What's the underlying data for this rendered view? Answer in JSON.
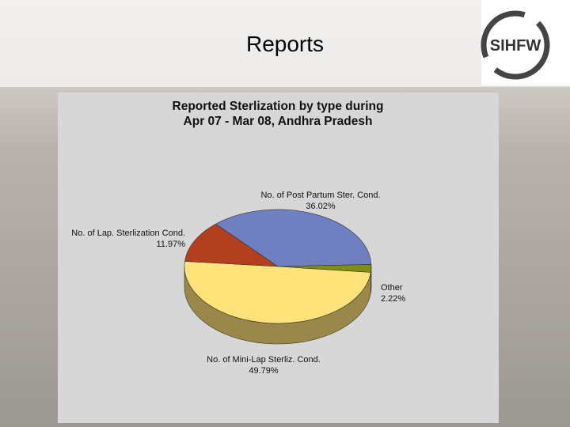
{
  "slide_title": "Reports",
  "logo_text": "SIHFW",
  "chart_data": {
    "type": "pie3d",
    "title_lines": [
      "Reported Sterlization by type during",
      "Apr 07 - Mar 08, Andhra Pradesh"
    ],
    "categories": [
      "No. of Post Partum Ster. Cond.",
      "Other",
      "No. of Mini-Lap Sterliz. Cond.",
      "No. of Lap. Sterlization Cond."
    ],
    "values": [
      36.02,
      2.22,
      49.79,
      11.97
    ],
    "value_labels": [
      "36.02%",
      "2.22%",
      "49.79%",
      "11.97%"
    ],
    "colors": [
      "#6f80c2",
      "#7f8f14",
      "#ffe27a",
      "#b2401f"
    ]
  }
}
